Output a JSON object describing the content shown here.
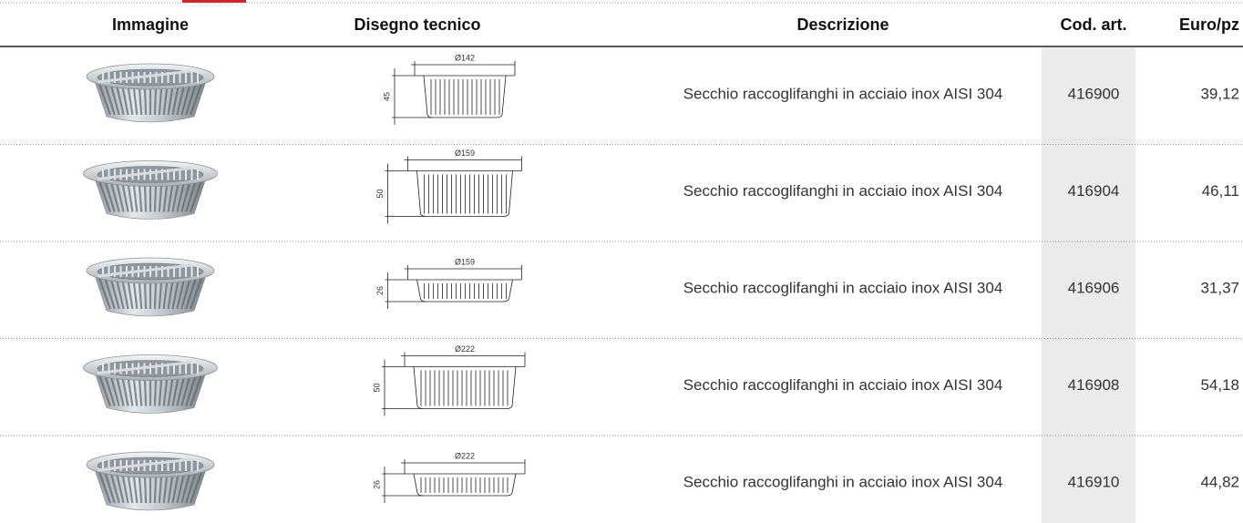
{
  "table": {
    "columns": [
      "Immagine",
      "Disegno tecnico",
      "Descrizione",
      "Cod. art.",
      "Euro/pz"
    ],
    "rows": [
      {
        "drawing": {
          "diameter": "Ø142",
          "height": "45"
        },
        "description": "Secchio raccoglifanghi in acciaio inox AISI 304",
        "code": "416900",
        "price": "39,12"
      },
      {
        "drawing": {
          "diameter": "Ø159",
          "height": "50"
        },
        "description": "Secchio raccoglifanghi in acciaio inox AISI 304",
        "code": "416904",
        "price": "46,11"
      },
      {
        "drawing": {
          "diameter": "Ø159",
          "height": "26"
        },
        "description": "Secchio raccoglifanghi in acciaio inox AISI 304",
        "code": "416906",
        "price": "31,37"
      },
      {
        "drawing": {
          "diameter": "Ø222",
          "height": "50"
        },
        "description": "Secchio raccoglifanghi in acciaio inox AISI 304",
        "code": "416908",
        "price": "54,18"
      },
      {
        "drawing": {
          "diameter": "Ø222",
          "height": "26"
        },
        "description": "Secchio raccoglifanghi in acciaio inox AISI 304",
        "code": "416910",
        "price": "44,82"
      }
    ]
  }
}
